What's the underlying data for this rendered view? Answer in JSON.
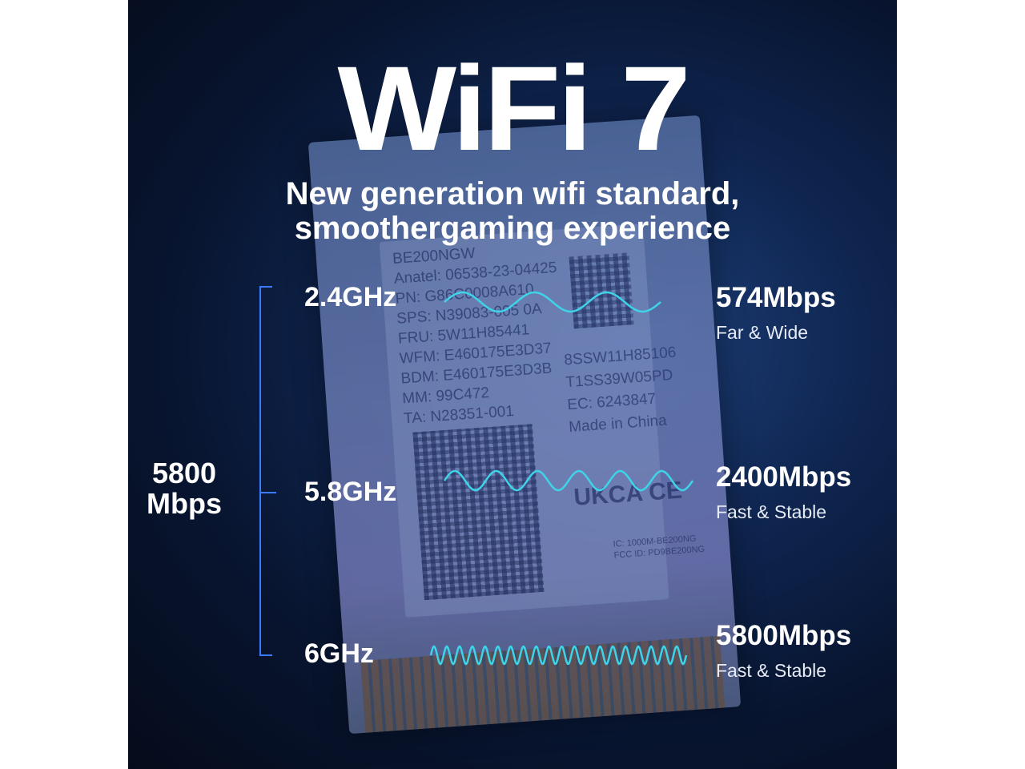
{
  "title": "WiFi 7",
  "subtitle_lines": [
    "New generation wifi standard,",
    "smoothergaming experience"
  ],
  "total_speed": {
    "value": "5800",
    "unit": "Mbps"
  },
  "bands": [
    {
      "band": "2.4GHz",
      "speed": "574Mbps",
      "desc": "Far & Wide",
      "wave_cycles": 3
    },
    {
      "band": "5.8GHz",
      "speed": "2400Mbps",
      "desc": "Fast & Stable",
      "wave_cycles": 6
    },
    {
      "band": "6GHz",
      "speed": "5800Mbps",
      "desc": "Fast & Stable",
      "wave_cycles": 20
    }
  ],
  "card_label": {
    "left_lines": [
      "BE200NGW",
      "Anatel: 06538-23-04425",
      "PN: G86C0008A610",
      "SPS: N39083-005 0A",
      "FRU: 5W11H85441",
      "WFM: E460175E3D37",
      "BDM: E460175E3D3B",
      "MM: 99C472",
      "TA: N28351-001"
    ],
    "right_lines": [
      "8SSW11H85106",
      "T1SS39W05PD",
      "EC: 6243847",
      "Made in China"
    ],
    "marks": "UKCA  CE",
    "ids": [
      "IC: 1000M-BE200NG",
      "FCC ID: PD9BE200NG"
    ]
  },
  "colors": {
    "wave": "#3fd3e8",
    "bracket": "#3a7bff",
    "text": "#ffffff"
  }
}
